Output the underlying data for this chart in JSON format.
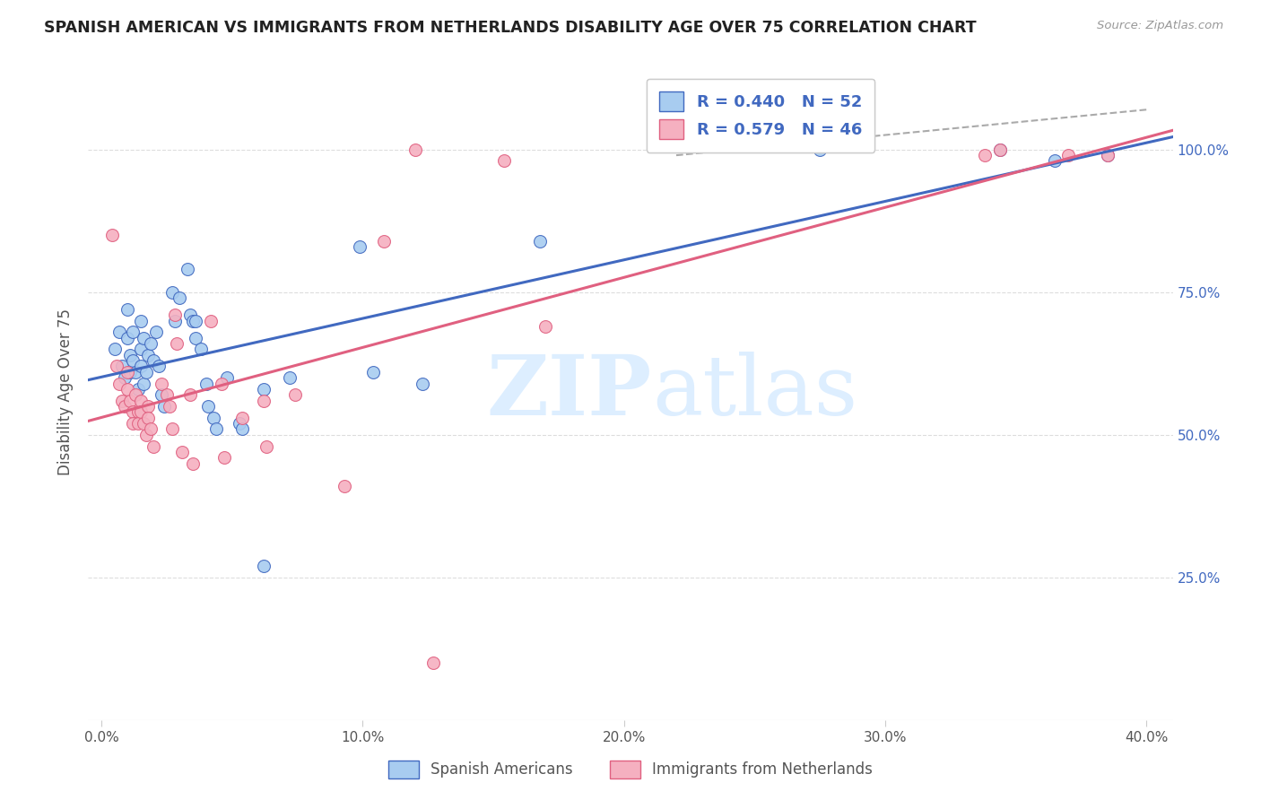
{
  "title": "SPANISH AMERICAN VS IMMIGRANTS FROM NETHERLANDS DISABILITY AGE OVER 75 CORRELATION CHART",
  "source": "Source: ZipAtlas.com",
  "ylabel": "Disability Age Over 75",
  "legend_bottom": [
    "Spanish Americans",
    "Immigrants from Netherlands"
  ],
  "blue_R": 0.44,
  "blue_N": 52,
  "pink_R": 0.579,
  "pink_N": 46,
  "blue_color": "#A8CCF0",
  "pink_color": "#F5B0C0",
  "blue_line_color": "#4169C0",
  "pink_line_color": "#E06080",
  "blue_scatter": [
    [
      0.5,
      65
    ],
    [
      0.7,
      68
    ],
    [
      0.8,
      62
    ],
    [
      0.9,
      60
    ],
    [
      1.0,
      72
    ],
    [
      1.0,
      67
    ],
    [
      1.1,
      64
    ],
    [
      1.1,
      61
    ],
    [
      1.2,
      68
    ],
    [
      1.2,
      63
    ],
    [
      1.3,
      61
    ],
    [
      1.4,
      58
    ],
    [
      1.5,
      70
    ],
    [
      1.5,
      65
    ],
    [
      1.5,
      62
    ],
    [
      1.6,
      59
    ],
    [
      1.6,
      67
    ],
    [
      1.7,
      61
    ],
    [
      1.8,
      64
    ],
    [
      1.9,
      66
    ],
    [
      2.0,
      63
    ],
    [
      2.1,
      68
    ],
    [
      2.2,
      62
    ],
    [
      2.3,
      57
    ],
    [
      2.4,
      55
    ],
    [
      2.7,
      75
    ],
    [
      2.8,
      70
    ],
    [
      3.0,
      74
    ],
    [
      3.3,
      79
    ],
    [
      3.4,
      71
    ],
    [
      3.5,
      70
    ],
    [
      3.6,
      67
    ],
    [
      3.6,
      70
    ],
    [
      3.8,
      65
    ],
    [
      4.0,
      59
    ],
    [
      4.1,
      55
    ],
    [
      4.3,
      53
    ],
    [
      4.4,
      51
    ],
    [
      4.8,
      60
    ],
    [
      5.3,
      52
    ],
    [
      5.4,
      51
    ],
    [
      6.2,
      58
    ],
    [
      6.2,
      27
    ],
    [
      7.2,
      60
    ],
    [
      9.9,
      83
    ],
    [
      10.4,
      61
    ],
    [
      12.3,
      59
    ],
    [
      16.8,
      84
    ],
    [
      27.5,
      100
    ],
    [
      34.4,
      100
    ],
    [
      36.5,
      98
    ],
    [
      38.5,
      99
    ]
  ],
  "pink_scatter": [
    [
      0.4,
      85
    ],
    [
      0.6,
      62
    ],
    [
      0.7,
      59
    ],
    [
      0.8,
      56
    ],
    [
      0.9,
      55
    ],
    [
      1.0,
      61
    ],
    [
      1.0,
      58
    ],
    [
      1.1,
      56
    ],
    [
      1.2,
      54
    ],
    [
      1.2,
      52
    ],
    [
      1.3,
      57
    ],
    [
      1.4,
      54
    ],
    [
      1.4,
      52
    ],
    [
      1.5,
      56
    ],
    [
      1.5,
      54
    ],
    [
      1.6,
      52
    ],
    [
      1.7,
      50
    ],
    [
      1.8,
      55
    ],
    [
      1.8,
      53
    ],
    [
      1.9,
      51
    ],
    [
      2.0,
      48
    ],
    [
      2.3,
      59
    ],
    [
      2.5,
      57
    ],
    [
      2.6,
      55
    ],
    [
      2.7,
      51
    ],
    [
      2.8,
      71
    ],
    [
      2.9,
      66
    ],
    [
      3.1,
      47
    ],
    [
      3.4,
      57
    ],
    [
      3.5,
      45
    ],
    [
      4.2,
      70
    ],
    [
      4.6,
      59
    ],
    [
      4.7,
      46
    ],
    [
      5.4,
      53
    ],
    [
      6.2,
      56
    ],
    [
      6.3,
      48
    ],
    [
      7.4,
      57
    ],
    [
      9.3,
      41
    ],
    [
      10.8,
      84
    ],
    [
      12.0,
      100
    ],
    [
      12.7,
      10
    ],
    [
      15.4,
      98
    ],
    [
      17.0,
      69
    ],
    [
      33.8,
      99
    ],
    [
      34.4,
      100
    ],
    [
      37.0,
      99
    ],
    [
      38.5,
      99
    ]
  ],
  "xlim": [
    -0.5,
    41
  ],
  "ylim": [
    0,
    115
  ],
  "x_ticks": [
    0,
    10,
    20,
    30,
    40
  ],
  "x_tick_labels": [
    "0.0%",
    "10.0%",
    "20.0%",
    "30.0%",
    "40.0%"
  ],
  "y_ticks": [
    25,
    50,
    75,
    100
  ],
  "y_tick_labels_right": [
    "25.0%",
    "50.0%",
    "75.0%",
    "100.0%"
  ],
  "dashed_line": [
    [
      22,
      99
    ],
    [
      40,
      107
    ]
  ],
  "watermark_zip": "ZIP",
  "watermark_atlas": "atlas",
  "watermark_color": "#DDEEFF",
  "background_color": "#FFFFFF",
  "grid_color": "#DDDDDD"
}
